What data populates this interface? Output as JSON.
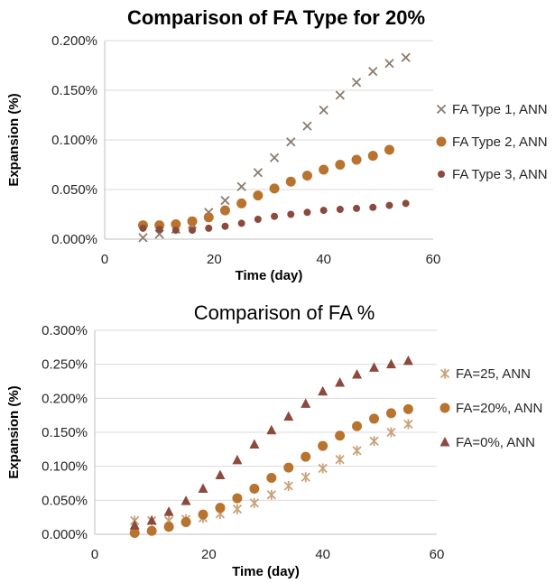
{
  "chart_data": [
    {
      "type": "scatter",
      "title": "Comparison of FA Type for 20%",
      "xlabel": "Time (day)",
      "ylabel": "Expansion (%)",
      "xlim": [
        0,
        60
      ],
      "ylim": [
        0,
        0.2
      ],
      "x_ticks": [
        "0",
        "20",
        "40",
        "60"
      ],
      "y_ticks": [
        "0.000%",
        "0.050%",
        "0.100%",
        "0.150%",
        "0.200%"
      ],
      "grid": "horizontal",
      "legend_position": "right",
      "series": [
        {
          "name": "FA Type 1, ANN",
          "marker": "x",
          "color": "#8c7b6b",
          "points": [
            [
              7,
              0.0015
            ],
            [
              10,
              0.005
            ],
            [
              13,
              0.01
            ],
            [
              16,
              0.015
            ],
            [
              19,
              0.027
            ],
            [
              22,
              0.039
            ],
            [
              25,
              0.053
            ],
            [
              28,
              0.067
            ],
            [
              31,
              0.082
            ],
            [
              34,
              0.098
            ],
            [
              37,
              0.114
            ],
            [
              40,
              0.13
            ],
            [
              43,
              0.145
            ],
            [
              46,
              0.158
            ],
            [
              49,
              0.169
            ],
            [
              52,
              0.177
            ],
            [
              55,
              0.183
            ]
          ]
        },
        {
          "name": "FA Type 2, ANN",
          "marker": "circle-large",
          "color": "#b8732e",
          "points": [
            [
              7,
              0.014
            ],
            [
              10,
              0.014
            ],
            [
              13,
              0.015
            ],
            [
              16,
              0.018
            ],
            [
              19,
              0.022
            ],
            [
              22,
              0.029
            ],
            [
              25,
              0.036
            ],
            [
              28,
              0.044
            ],
            [
              31,
              0.051
            ],
            [
              34,
              0.058
            ],
            [
              37,
              0.064
            ],
            [
              40,
              0.07
            ],
            [
              43,
              0.075
            ],
            [
              46,
              0.08
            ],
            [
              49,
              0.084
            ],
            [
              52,
              0.09
            ]
          ]
        },
        {
          "name": "FA Type 3, ANN",
          "marker": "circle-small",
          "color": "#8b4a3c",
          "points": [
            [
              7,
              0.011
            ],
            [
              10,
              0.01
            ],
            [
              13,
              0.009
            ],
            [
              16,
              0.009
            ],
            [
              19,
              0.011
            ],
            [
              22,
              0.013
            ],
            [
              25,
              0.016
            ],
            [
              28,
              0.02
            ],
            [
              31,
              0.023
            ],
            [
              34,
              0.025
            ],
            [
              37,
              0.027
            ],
            [
              40,
              0.029
            ],
            [
              43,
              0.03
            ],
            [
              46,
              0.031
            ],
            [
              49,
              0.032
            ],
            [
              52,
              0.034
            ],
            [
              55,
              0.036
            ]
          ]
        }
      ]
    },
    {
      "type": "scatter",
      "title": "Comparison of FA %",
      "xlabel": "Time (day)",
      "ylabel": "Expansion (%)",
      "xlim": [
        0,
        60
      ],
      "ylim": [
        0,
        0.3
      ],
      "x_ticks": [
        "0",
        "20",
        "40",
        "60"
      ],
      "y_ticks": [
        "0.000%",
        "0.050%",
        "0.100%",
        "0.150%",
        "0.200%",
        "0.250%",
        "0.300%"
      ],
      "grid": "horizontal",
      "legend_position": "right",
      "series": [
        {
          "name": "FA=25, ANN",
          "marker": "star",
          "color": "#c9a27a",
          "points": [
            [
              7,
              0.02
            ],
            [
              10,
              0.02
            ],
            [
              13,
              0.02
            ],
            [
              16,
              0.022
            ],
            [
              19,
              0.024
            ],
            [
              22,
              0.03
            ],
            [
              25,
              0.037
            ],
            [
              28,
              0.046
            ],
            [
              31,
              0.058
            ],
            [
              34,
              0.071
            ],
            [
              37,
              0.084
            ],
            [
              40,
              0.097
            ],
            [
              43,
              0.11
            ],
            [
              46,
              0.123
            ],
            [
              49,
              0.137
            ],
            [
              52,
              0.15
            ],
            [
              55,
              0.162
            ]
          ]
        },
        {
          "name": "FA=20%, ANN",
          "marker": "circle-large",
          "color": "#b8732e",
          "points": [
            [
              7,
              0.002
            ],
            [
              10,
              0.005
            ],
            [
              13,
              0.011
            ],
            [
              16,
              0.018
            ],
            [
              19,
              0.029
            ],
            [
              22,
              0.039
            ],
            [
              25,
              0.053
            ],
            [
              28,
              0.067
            ],
            [
              31,
              0.083
            ],
            [
              34,
              0.098
            ],
            [
              37,
              0.114
            ],
            [
              40,
              0.13
            ],
            [
              43,
              0.145
            ],
            [
              46,
              0.159
            ],
            [
              49,
              0.17
            ],
            [
              52,
              0.178
            ],
            [
              55,
              0.184
            ]
          ]
        },
        {
          "name": "FA=0%, ANN",
          "marker": "triangle",
          "color": "#8b4a3c",
          "points": [
            [
              7,
              0.013
            ],
            [
              10,
              0.02
            ],
            [
              13,
              0.033
            ],
            [
              16,
              0.049
            ],
            [
              19,
              0.067
            ],
            [
              22,
              0.087
            ],
            [
              25,
              0.109
            ],
            [
              28,
              0.132
            ],
            [
              31,
              0.153
            ],
            [
              34,
              0.173
            ],
            [
              37,
              0.192
            ],
            [
              40,
              0.21
            ],
            [
              43,
              0.223
            ],
            [
              46,
              0.235
            ],
            [
              49,
              0.245
            ],
            [
              52,
              0.25
            ],
            [
              55,
              0.255
            ]
          ]
        }
      ]
    }
  ]
}
